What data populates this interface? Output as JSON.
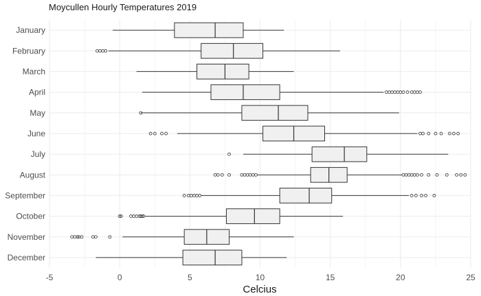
{
  "chart_data": {
    "type": "boxplot",
    "orientation": "horizontal",
    "title": "Moycullen Hourly Temperatures 2019",
    "xlabel": "Celcius",
    "ylabel": "",
    "xlim": [
      -5,
      25
    ],
    "xticks": [
      -5,
      0,
      5,
      10,
      15,
      20,
      25
    ],
    "grid": true,
    "box_fill": "#f0f0f0",
    "line_color": "#333333",
    "categories": [
      "January",
      "February",
      "March",
      "April",
      "May",
      "June",
      "July",
      "August",
      "September",
      "October",
      "November",
      "December"
    ],
    "series": [
      {
        "label": "January",
        "whisker_low": -0.5,
        "q1": 3.9,
        "median": 6.8,
        "q3": 8.8,
        "whisker_high": 11.7,
        "outliers": []
      },
      {
        "label": "February",
        "whisker_low": -0.8,
        "q1": 5.8,
        "median": 8.1,
        "q3": 10.2,
        "whisker_high": 15.7,
        "outliers": [
          -1.6,
          -1.4,
          -1.2,
          -1.0
        ]
      },
      {
        "label": "March",
        "whisker_low": 1.2,
        "q1": 5.5,
        "median": 7.5,
        "q3": 9.2,
        "whisker_high": 12.4,
        "outliers": []
      },
      {
        "label": "April",
        "whisker_low": 1.6,
        "q1": 6.5,
        "median": 8.8,
        "q3": 11.4,
        "whisker_high": 18.8,
        "outliers": [
          19.0,
          19.2,
          19.4,
          19.6,
          19.8,
          20.0,
          20.2,
          20.5,
          20.8,
          21.0,
          21.2,
          21.4
        ]
      },
      {
        "label": "May",
        "whisker_low": 1.5,
        "q1": 8.7,
        "median": 11.3,
        "q3": 13.4,
        "whisker_high": 19.9,
        "outliers": [
          1.5
        ]
      },
      {
        "label": "June",
        "whisker_low": 4.1,
        "q1": 10.2,
        "median": 12.4,
        "q3": 14.6,
        "whisker_high": 21.2,
        "outliers": [
          2.2,
          2.5,
          3.0,
          3.3,
          21.4,
          21.6,
          22.0,
          22.5,
          22.9,
          23.5,
          23.8,
          24.1
        ]
      },
      {
        "label": "July",
        "whisker_low": 8.8,
        "q1": 13.7,
        "median": 16.0,
        "q3": 17.6,
        "whisker_high": 23.4,
        "outliers": [
          7.8
        ]
      },
      {
        "label": "August",
        "whisker_low": 9.8,
        "q1": 13.6,
        "median": 14.9,
        "q3": 16.2,
        "whisker_high": 20.1,
        "outliers": [
          6.8,
          7.0,
          7.3,
          7.8,
          8.7,
          8.9,
          9.1,
          9.3,
          9.5,
          9.7,
          20.2,
          20.4,
          20.6,
          20.8,
          21.0,
          21.2,
          21.5,
          22.0,
          22.6,
          23.3,
          24.0,
          24.3,
          24.6
        ]
      },
      {
        "label": "September",
        "whisker_low": 5.8,
        "q1": 11.4,
        "median": 13.5,
        "q3": 15.1,
        "whisker_high": 20.6,
        "outliers": [
          4.6,
          4.9,
          5.1,
          5.3,
          5.5,
          5.7,
          20.8,
          21.1,
          21.5,
          21.8,
          22.4
        ]
      },
      {
        "label": "October",
        "whisker_low": 1.8,
        "q1": 7.6,
        "median": 9.6,
        "q3": 11.4,
        "whisker_high": 15.9,
        "outliers": [
          0.0,
          0.1,
          0.8,
          1.0,
          1.2,
          1.4,
          1.5,
          1.6,
          1.7
        ]
      },
      {
        "label": "November",
        "whisker_low": 0.2,
        "q1": 4.6,
        "median": 6.2,
        "q3": 7.8,
        "whisker_high": 12.4,
        "outliers": [
          -3.4,
          -3.2,
          -3.0,
          -2.9,
          -2.7,
          -1.9,
          -1.7,
          -0.7
        ]
      },
      {
        "label": "December",
        "whisker_low": -1.7,
        "q1": 4.5,
        "median": 6.8,
        "q3": 8.7,
        "whisker_high": 11.9,
        "outliers": []
      }
    ]
  }
}
